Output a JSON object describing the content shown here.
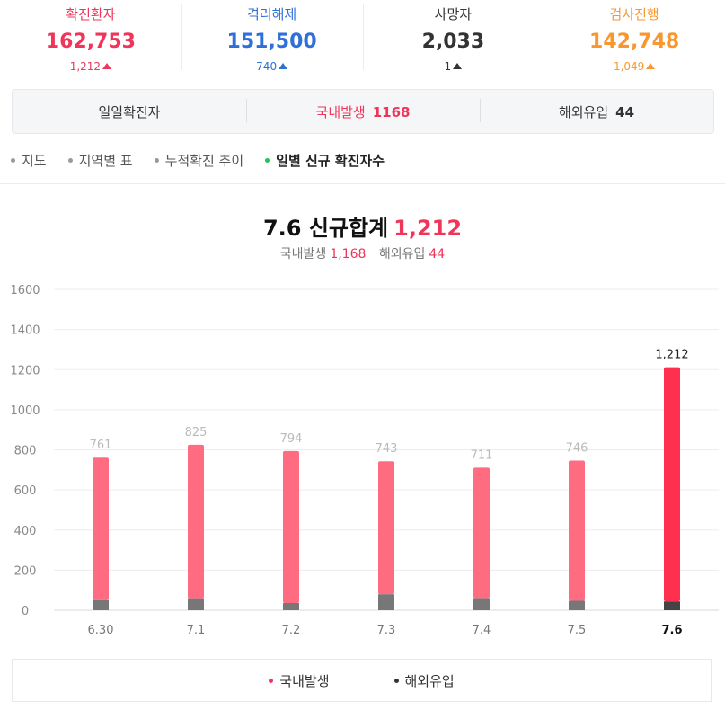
{
  "summary": [
    {
      "label": "확진환자",
      "value": "162,753",
      "delta": "1,212",
      "color": "#f0355b"
    },
    {
      "label": "격리해제",
      "value": "151,500",
      "delta": "740",
      "color": "#2f6fd8"
    },
    {
      "label": "사망자",
      "value": "2,033",
      "delta": "1",
      "color": "#333333"
    },
    {
      "label": "검사진행",
      "value": "142,748",
      "delta": "1,049",
      "color": "#f89730"
    }
  ],
  "daily": {
    "label": "일일확진자",
    "domestic_label": "국내발생",
    "domestic_value": "1168",
    "overseas_label": "해외유입",
    "overseas_value": "44"
  },
  "tabs": [
    {
      "label": "지도",
      "active": false
    },
    {
      "label": "지역별 표",
      "active": false
    },
    {
      "label": "누적확진 추이",
      "active": false
    },
    {
      "label": "일별 신규 확진자수",
      "active": true
    }
  ],
  "chart_heading": {
    "date": "7.6",
    "title": "신규합계",
    "total": "1,212",
    "domestic_label": "국내발생",
    "domestic_value": "1,168",
    "overseas_label": "해외유입",
    "overseas_value": "44"
  },
  "legend": {
    "domestic": "국내발생",
    "overseas": "해외유입"
  },
  "colors": {
    "domestic": "#ff6b81",
    "domestic_highlight": "#ff304f",
    "overseas": "#777777",
    "overseas_highlight": "#444444",
    "accent": "#f0355b",
    "active_tab": "#22c25b"
  },
  "chart_data": {
    "type": "bar",
    "stacked": true,
    "categories": [
      "6.30",
      "7.1",
      "7.2",
      "7.3",
      "7.4",
      "7.5",
      "7.6"
    ],
    "series": [
      {
        "name": "국내발생",
        "values": [
          711,
          765,
          758,
          663,
          650,
          699,
          1168
        ]
      },
      {
        "name": "해외유입",
        "values": [
          50,
          60,
          36,
          80,
          61,
          47,
          44
        ]
      }
    ],
    "totals": [
      761,
      825,
      794,
      743,
      711,
      746,
      1212
    ],
    "data_labels": [
      "761",
      "825",
      "794",
      "743",
      "711",
      "746",
      "1,212"
    ],
    "highlight_index": 6,
    "ylim": [
      0,
      1600
    ],
    "yticks": [
      0,
      200,
      400,
      600,
      800,
      1000,
      1200,
      1400,
      1600
    ],
    "grid": true,
    "legend_position": "bottom"
  }
}
